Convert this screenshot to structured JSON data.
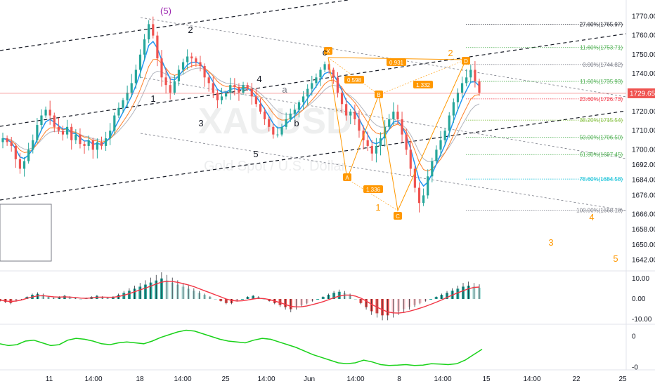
{
  "chart_data": [
    {
      "type": "candlestick",
      "title": "",
      "watermark": {
        "symbol": "XAUUSD",
        "subtitle": "Gold Spot / U.S. Dollar"
      },
      "x_tick_labels": [
        "11",
        "14:00",
        "18",
        "14:00",
        "25",
        "14:00",
        "Jun",
        "14:00",
        "8",
        "14:00",
        "15",
        "14:00",
        "22",
        "25"
      ],
      "y_tick_labels": [
        "1770.00",
        "1760.00",
        "1750.00",
        "1740.00",
        "1730.00",
        "1720.00",
        "1710.00",
        "1700.00",
        "1692.00",
        "1684.00",
        "1676.00",
        "1666.00",
        "1658.00",
        "1650.00",
        "1642.00"
      ],
      "y_range": [
        1640,
        1775
      ],
      "last_price": "1729.65",
      "colors": {
        "up": "#26a69a",
        "down": "#ef5350",
        "ema_fast": "#2196f3",
        "ema_slow": "#ff7f27",
        "ma": "#b2b5be",
        "last_price": "#ef5350"
      },
      "close_series": [
        1706,
        1704,
        1702,
        1695,
        1690,
        1694,
        1700,
        1705,
        1713,
        1718,
        1721,
        1718,
        1712,
        1710,
        1708,
        1712,
        1705,
        1708,
        1703,
        1702,
        1705,
        1700,
        1704,
        1702,
        1706,
        1710,
        1718,
        1722,
        1726,
        1730,
        1735,
        1742,
        1750,
        1758,
        1766,
        1760,
        1748,
        1738,
        1734,
        1730,
        1736,
        1742,
        1746,
        1749,
        1748,
        1746,
        1744,
        1738,
        1735,
        1730,
        1726,
        1728,
        1730,
        1734,
        1733,
        1730,
        1734,
        1732,
        1728,
        1724,
        1720,
        1716,
        1712,
        1708,
        1708,
        1712,
        1716,
        1719,
        1721,
        1725,
        1728,
        1732,
        1735,
        1738,
        1742,
        1745,
        1742,
        1738,
        1730,
        1724,
        1718,
        1720,
        1716,
        1710,
        1705,
        1702,
        1698,
        1702,
        1706,
        1712,
        1716,
        1720,
        1716,
        1708,
        1700,
        1690,
        1680,
        1672,
        1676,
        1686,
        1694,
        1700,
        1705,
        1710,
        1718,
        1725,
        1730,
        1735,
        1738,
        1742,
        1736,
        1730
      ],
      "fib_levels": [
        {
          "label": "27.60%(1765.97)",
          "value": 1765.97,
          "color": "#131722"
        },
        {
          "label": "11.60%(1753.71)",
          "value": 1753.71,
          "color": "#4caf50"
        },
        {
          "label": "0.00%(1744.82)",
          "value": 1744.82,
          "color": "#787b86"
        },
        {
          "label": "11.60%(1735.93)",
          "value": 1735.93,
          "color": "#4caf50"
        },
        {
          "label": "23.60%(1726.73)",
          "value": 1726.73,
          "color": "#f23645"
        },
        {
          "label": "38.20%(1715.54)",
          "value": 1715.54,
          "color": "#8bc34a"
        },
        {
          "label": "50.00%(1706.50)",
          "value": 1706.5,
          "color": "#4caf50"
        },
        {
          "label": "61.80%(1697.45)",
          "value": 1697.45,
          "color": "#4caf50"
        },
        {
          "label": "78.60%(1684.58)",
          "value": 1684.58,
          "color": "#00bcd4"
        },
        {
          "label": "100.00%(1668.18)",
          "value": 1668.18,
          "color": "#787b86"
        }
      ],
      "wave_labels_purple": [
        "(5)",
        "a",
        "c"
      ],
      "wave_labels_gray": [
        "1",
        "2",
        "3",
        "4",
        "5",
        "b"
      ],
      "wave_labels_orange": [
        "1",
        "2",
        "3",
        "4",
        "5"
      ],
      "harmonic_points": [
        "X",
        "A",
        "B",
        "C",
        "D"
      ],
      "harmonic_ratios": [
        "0.931",
        "0.598",
        "1.332",
        "1.336"
      ]
    },
    {
      "type": "bar",
      "title": "",
      "y_tick_labels": [
        "10.00",
        "0.00",
        "-10.00"
      ],
      "y_range": [
        -12,
        13
      ],
      "signal_color": "#f23645",
      "histogram": [
        -1,
        -1.5,
        -2,
        -1,
        -0.5,
        1,
        2,
        2.5,
        2,
        1,
        0.5,
        1,
        1.5,
        1,
        0.5,
        0,
        0.5,
        1,
        1.5,
        1,
        0.5,
        1,
        2,
        3,
        4,
        5,
        6,
        7,
        8,
        9,
        10,
        9,
        8,
        7,
        6,
        5,
        4,
        3,
        2,
        1,
        0,
        -1,
        -2,
        -2,
        -1,
        0,
        1,
        1.5,
        1,
        0,
        -1,
        -2,
        -3,
        -4,
        -5,
        -4,
        -3,
        -2,
        -1,
        0,
        1,
        2,
        3,
        3.5,
        3,
        2,
        0,
        -2,
        -4,
        -6,
        -7,
        -8,
        -8,
        -7,
        -6,
        -5,
        -4,
        -3,
        -2,
        -1,
        0,
        1,
        2,
        3,
        4,
        5,
        6,
        6.5,
        6,
        5.5
      ],
      "signal": [
        -0.5,
        -1,
        -1.2,
        -1,
        -0.5,
        0.3,
        1,
        1.5,
        1.6,
        1.3,
        1,
        0.9,
        1,
        0.9,
        0.7,
        0.4,
        0.3,
        0.5,
        0.8,
        0.9,
        0.8,
        0.8,
        1.2,
        1.8,
        2.6,
        3.5,
        4.4,
        5.3,
        6.3,
        7.3,
        8.2,
        8.6,
        8.5,
        8.1,
        7.5,
        6.8,
        6,
        5,
        4,
        3,
        2,
        1,
        0,
        -0.7,
        -1,
        -0.9,
        -0.5,
        0,
        0.3,
        0.2,
        -0.3,
        -1,
        -1.8,
        -2.7,
        -3.6,
        -3.9,
        -3.8,
        -3.4,
        -2.8,
        -2.1,
        -1.3,
        -0.4,
        0.6,
        1.4,
        1.9,
        1.9,
        1.4,
        0.4,
        -1,
        -2.6,
        -4,
        -5.3,
        -6.3,
        -6.8,
        -6.9,
        -6.6,
        -6,
        -5.3,
        -4.5,
        -3.6,
        -2.6,
        -1.6,
        -0.5,
        0.7,
        1.9,
        3,
        4,
        5,
        5.6,
        5.8
      ]
    },
    {
      "type": "line",
      "title": "",
      "y_tick_labels": [
        "0",
        "-0"
      ],
      "y_range": [
        -1.2,
        1.2
      ],
      "color": "#19d219",
      "values": [
        0.2,
        0.1,
        0.15,
        0.35,
        0.4,
        0.25,
        0.1,
        0.15,
        0.4,
        0.5,
        0.45,
        0.35,
        0.2,
        0.15,
        0.25,
        0.3,
        0.25,
        0.2,
        0.35,
        0.55,
        0.7,
        0.85,
        0.95,
        0.9,
        0.75,
        0.6,
        0.45,
        0.35,
        0.3,
        0.25,
        0.4,
        0.5,
        0.45,
        0.3,
        0.15,
        0.0,
        -0.2,
        -0.4,
        -0.55,
        -0.7,
        -0.85,
        -0.9,
        -0.85,
        -0.7,
        -0.8,
        -0.95,
        -1.0,
        -0.98,
        -0.95,
        -1.0,
        -0.98,
        -0.9,
        -0.92,
        -0.95,
        -0.9,
        -0.7,
        -0.4,
        -0.1
      ]
    }
  ]
}
